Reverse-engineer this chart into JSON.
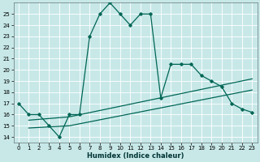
{
  "xlabel": "Humidex (Indice chaleur)",
  "bg_color": "#c8e8e8",
  "grid_color": "#ffffff",
  "line_color": "#006655",
  "xlim": [
    -0.5,
    23.5
  ],
  "ylim": [
    13.5,
    26
  ],
  "xticks": [
    0,
    1,
    2,
    3,
    4,
    5,
    6,
    7,
    8,
    9,
    10,
    11,
    12,
    13,
    14,
    15,
    16,
    17,
    18,
    19,
    20,
    21,
    22,
    23
  ],
  "yticks": [
    14,
    15,
    16,
    17,
    18,
    19,
    20,
    21,
    22,
    23,
    24,
    25
  ],
  "series1_x": [
    0,
    1,
    2,
    3,
    4,
    5,
    6,
    7,
    8,
    9,
    10,
    11,
    12,
    13,
    14,
    15,
    16,
    17,
    18,
    19,
    20,
    21,
    22,
    23
  ],
  "series1_y": [
    17,
    16,
    16,
    15,
    14,
    16,
    16,
    23,
    25,
    26,
    25,
    24,
    25,
    25,
    17.5,
    20.5,
    20.5,
    20.5,
    19.5,
    19,
    18.5,
    17,
    16.5,
    16.2
  ],
  "series2_x": [
    1,
    5,
    23
  ],
  "series2_y": [
    15.5,
    15.8,
    19.2
  ],
  "series3_x": [
    1,
    5,
    23
  ],
  "series3_y": [
    14.8,
    15.0,
    18.2
  ],
  "xlabel_fontsize": 6,
  "tick_fontsize": 5
}
